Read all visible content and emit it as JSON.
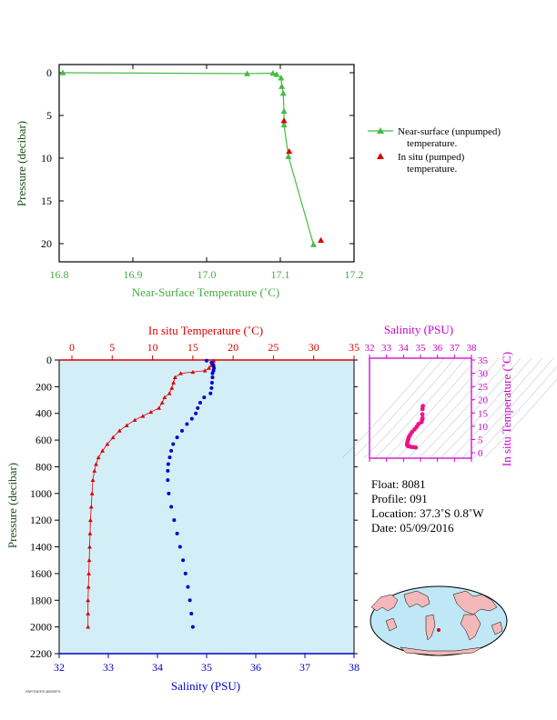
{
  "chart_data": [
    {
      "type": "line",
      "xlabel": "Near-Surface Temperature (˚C)",
      "ylabel": "Pressure (decibar)",
      "xlim": [
        16.8,
        17.2
      ],
      "ylim": [
        0,
        22
      ],
      "y_reversed": true,
      "x_ticks": [
        "16.8",
        "16.9",
        "17.0",
        "17.1",
        "17.2"
      ],
      "y_ticks": [
        "0",
        "5",
        "10",
        "15",
        "20"
      ],
      "colors": {
        "axis": "#44aa44",
        "unpumped": "#44bb44",
        "pumped": "#dd0000"
      },
      "series": [
        {
          "name": "Near-surface (unpumped) temperature.",
          "points": [
            [
              16.805,
              0.0
            ],
            [
              17.055,
              0.1
            ],
            [
              17.09,
              0.05
            ],
            [
              17.095,
              0.2
            ],
            [
              17.101,
              0.6
            ],
            [
              17.102,
              1.6
            ],
            [
              17.104,
              2.4
            ],
            [
              17.105,
              4.5
            ],
            [
              17.105,
              6.1
            ],
            [
              17.111,
              9.8
            ],
            [
              17.145,
              20.1
            ]
          ]
        },
        {
          "name": "In situ (pumped) temperature.",
          "points": [
            [
              17.105,
              5.6
            ],
            [
              17.112,
              9.2
            ],
            [
              17.155,
              19.6
            ]
          ]
        }
      ],
      "legend": {
        "unpumped": [
          "Near-surface (unpumped)",
          "temperature."
        ],
        "pumped": [
          "In situ (pumped)",
          "temperature."
        ]
      }
    },
    {
      "type": "scatter",
      "ylabel": "Pressure (decibar)",
      "top_xlabel": "In situ Temperature (˚C)",
      "bottom_xlabel": "Salinity (PSU)",
      "ylim": [
        0,
        2200
      ],
      "y_reversed": true,
      "temp_lim": [
        -2,
        35
      ],
      "sal_lim": [
        32,
        38
      ],
      "temp_ticks": [
        "0",
        "5",
        "10",
        "15",
        "20",
        "25",
        "30",
        "35"
      ],
      "sal_ticks": [
        "32",
        "33",
        "34",
        "35",
        "36",
        "37",
        "38"
      ],
      "y_ticks": [
        "0",
        "200",
        "400",
        "600",
        "800",
        "1000",
        "1200",
        "1400",
        "1600",
        "1800",
        "2000",
        "2200"
      ],
      "background": "#d3eef7",
      "colors": {
        "temperature": "#dd0000",
        "salinity": "#0000cc"
      },
      "temperature_profile": [
        [
          17.6,
          5
        ],
        [
          17.5,
          20
        ],
        [
          17.3,
          40
        ],
        [
          17.0,
          60
        ],
        [
          16.5,
          80
        ],
        [
          15.0,
          90
        ],
        [
          13.5,
          100
        ],
        [
          12.8,
          130
        ],
        [
          12.6,
          170
        ],
        [
          12.4,
          210
        ],
        [
          12.1,
          250
        ],
        [
          11.5,
          280
        ],
        [
          11.2,
          320
        ],
        [
          10.8,
          360
        ],
        [
          9.8,
          390
        ],
        [
          8.8,
          420
        ],
        [
          7.8,
          450
        ],
        [
          6.8,
          490
        ],
        [
          5.9,
          530
        ],
        [
          5.1,
          580
        ],
        [
          4.4,
          630
        ],
        [
          3.8,
          680
        ],
        [
          3.3,
          730
        ],
        [
          3.0,
          780
        ],
        [
          2.8,
          830
        ],
        [
          2.6,
          900
        ],
        [
          2.5,
          1000
        ],
        [
          2.4,
          1100
        ],
        [
          2.3,
          1200
        ],
        [
          2.25,
          1300
        ],
        [
          2.2,
          1400
        ],
        [
          2.15,
          1500
        ],
        [
          2.1,
          1600
        ],
        [
          2.05,
          1700
        ],
        [
          2.0,
          1800
        ],
        [
          2.0,
          1900
        ],
        [
          2.0,
          2000
        ]
      ],
      "salinity_profile": [
        [
          35.0,
          5
        ],
        [
          35.1,
          20
        ],
        [
          35.14,
          40
        ],
        [
          35.15,
          60
        ],
        [
          35.14,
          80
        ],
        [
          35.12,
          100
        ],
        [
          35.12,
          130
        ],
        [
          35.11,
          170
        ],
        [
          35.1,
          210
        ],
        [
          35.08,
          250
        ],
        [
          34.95,
          280
        ],
        [
          34.87,
          320
        ],
        [
          34.82,
          360
        ],
        [
          34.78,
          400
        ],
        [
          34.7,
          440
        ],
        [
          34.6,
          480
        ],
        [
          34.5,
          530
        ],
        [
          34.4,
          580
        ],
        [
          34.32,
          630
        ],
        [
          34.28,
          680
        ],
        [
          34.25,
          730
        ],
        [
          34.22,
          780
        ],
        [
          34.21,
          830
        ],
        [
          34.21,
          900
        ],
        [
          34.23,
          1000
        ],
        [
          34.28,
          1100
        ],
        [
          34.34,
          1200
        ],
        [
          34.4,
          1300
        ],
        [
          34.46,
          1400
        ],
        [
          34.52,
          1500
        ],
        [
          34.57,
          1600
        ],
        [
          34.62,
          1700
        ],
        [
          34.66,
          1800
        ],
        [
          34.69,
          1900
        ],
        [
          34.72,
          2000
        ]
      ]
    },
    {
      "type": "scatter",
      "top_xlabel": "Salinity (PSU)",
      "right_ylabel": "In situ Temperature (˚C)",
      "sal_lim": [
        32,
        38
      ],
      "temp_lim": [
        -2,
        35
      ],
      "sal_ticks": [
        "32",
        "33",
        "34",
        "35",
        "36",
        "37",
        "38"
      ],
      "temp_ticks": [
        "0",
        "5",
        "10",
        "15",
        "20",
        "25",
        "30",
        "35"
      ],
      "color": "#ee1188",
      "points": [
        [
          35.14,
          17.6
        ],
        [
          35.12,
          16.5
        ],
        [
          35.11,
          14.5
        ],
        [
          35.12,
          13.0
        ],
        [
          35.1,
          12.4
        ],
        [
          35.05,
          11.5
        ],
        [
          34.88,
          10.8
        ],
        [
          34.78,
          9.8
        ],
        [
          34.65,
          8.8
        ],
        [
          34.5,
          7.8
        ],
        [
          34.4,
          6.8
        ],
        [
          34.32,
          5.9
        ],
        [
          34.28,
          5.1
        ],
        [
          34.25,
          4.4
        ],
        [
          34.22,
          3.6
        ],
        [
          34.21,
          3.0
        ],
        [
          34.25,
          2.6
        ],
        [
          34.35,
          2.4
        ],
        [
          34.46,
          2.2
        ],
        [
          34.57,
          2.1
        ],
        [
          34.72,
          2.0
        ]
      ]
    }
  ],
  "float_info": {
    "float": "Float:  8081",
    "profile": "Profile:  091",
    "location": "Location:  37.3˚S   0.8˚W",
    "date": "Date:  05/09/2016"
  },
  "credit": "PARTNERS BBSRFS"
}
